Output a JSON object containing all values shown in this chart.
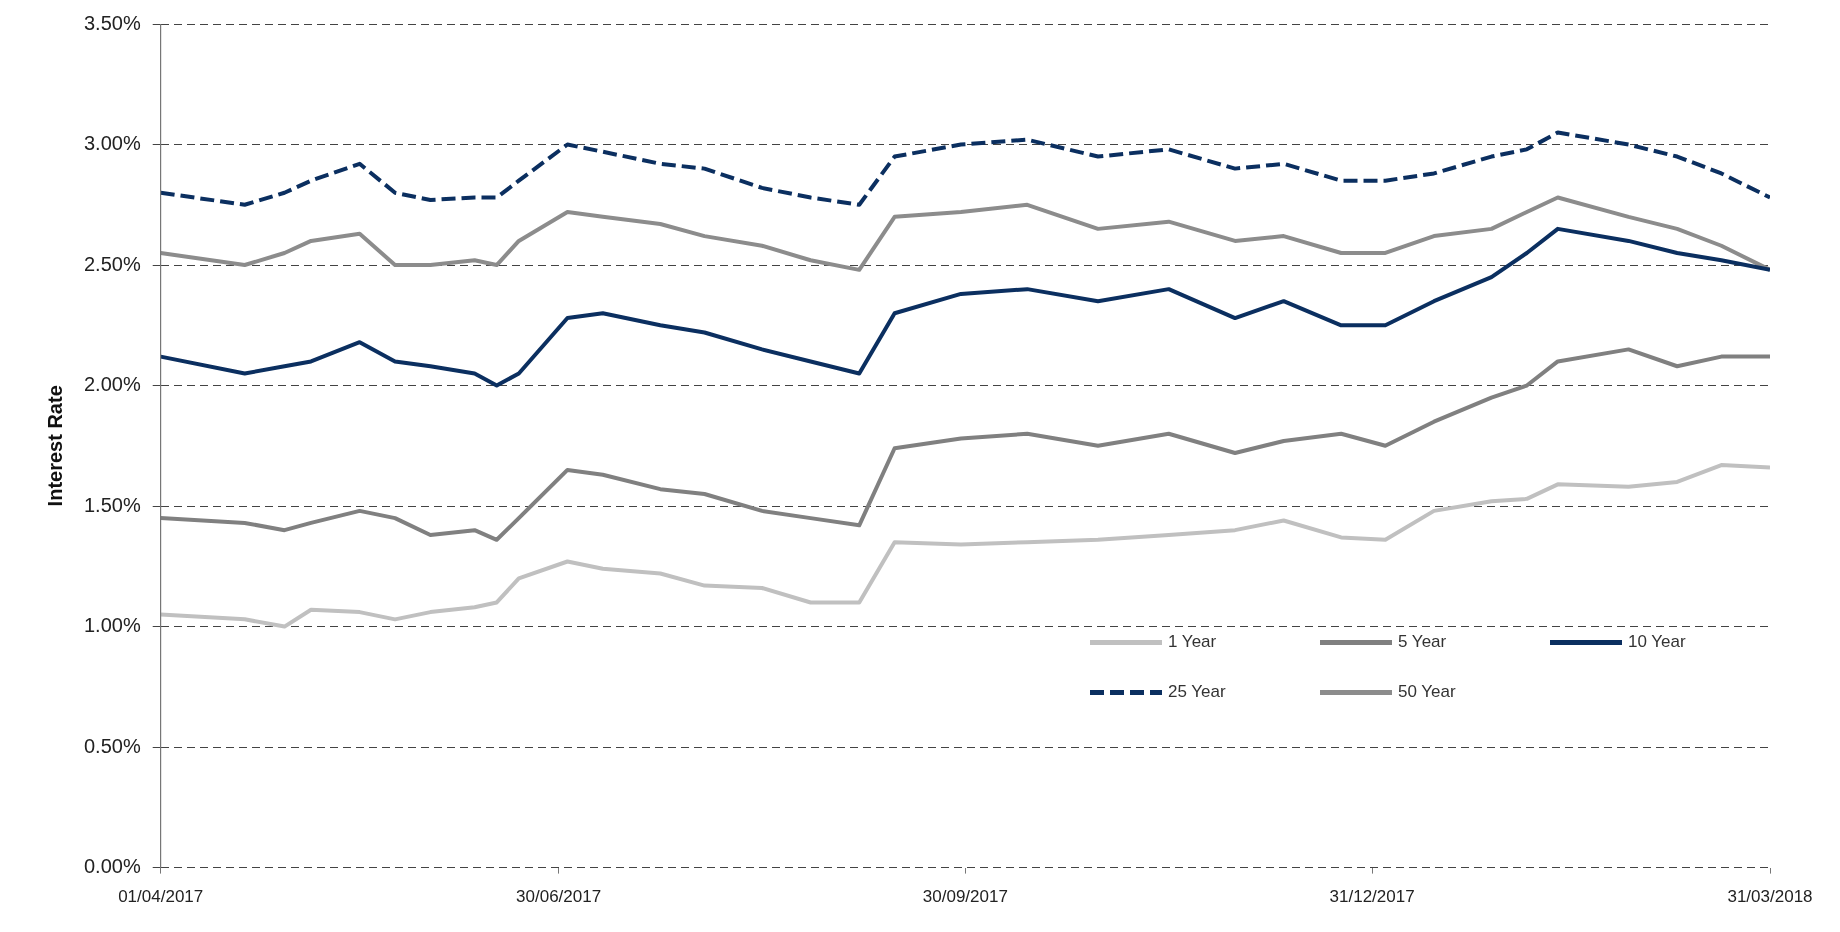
{
  "chart_data": {
    "type": "line",
    "ylabel": "Interest Rate",
    "x": [
      "2017-04-01",
      "2017-04-20",
      "2017-04-29",
      "2017-05-05",
      "2017-05-16",
      "2017-05-24",
      "2017-06-01",
      "2017-06-11",
      "2017-06-16",
      "2017-06-21",
      "2017-07-02",
      "2017-07-10",
      "2017-07-23",
      "2017-08-02",
      "2017-08-15",
      "2017-08-26",
      "2017-09-06",
      "2017-09-14",
      "2017-09-29",
      "2017-10-14",
      "2017-10-30",
      "2017-11-15",
      "2017-11-30",
      "2017-12-11",
      "2017-12-24",
      "2018-01-03",
      "2018-01-14",
      "2018-01-27",
      "2018-02-04",
      "2018-02-11",
      "2018-02-27",
      "2018-03-10",
      "2018-03-20",
      "2018-03-31"
    ],
    "series": [
      {
        "name": "1 Year",
        "color": "#c0c0c0",
        "line_style": "solid",
        "values": [
          1.05,
          1.03,
          1.0,
          1.07,
          1.06,
          1.03,
          1.06,
          1.08,
          1.1,
          1.2,
          1.27,
          1.24,
          1.22,
          1.17,
          1.16,
          1.1,
          1.1,
          1.35,
          1.34,
          1.35,
          1.36,
          1.38,
          1.4,
          1.44,
          1.37,
          1.36,
          1.48,
          1.52,
          1.53,
          1.59,
          1.58,
          1.6,
          1.67,
          1.66
        ]
      },
      {
        "name": "5 Year",
        "color": "#808080",
        "line_style": "solid",
        "values": [
          1.45,
          1.43,
          1.4,
          1.43,
          1.48,
          1.45,
          1.38,
          1.4,
          1.36,
          1.45,
          1.65,
          1.63,
          1.57,
          1.55,
          1.48,
          1.45,
          1.42,
          1.74,
          1.78,
          1.8,
          1.75,
          1.8,
          1.72,
          1.77,
          1.8,
          1.75,
          1.85,
          1.95,
          2.0,
          2.1,
          2.15,
          2.08,
          2.12,
          2.12
        ]
      },
      {
        "name": "10 Year",
        "color": "#0b2f60",
        "line_style": "solid",
        "values": [
          2.12,
          2.05,
          2.08,
          2.1,
          2.18,
          2.1,
          2.08,
          2.05,
          2.0,
          2.05,
          2.28,
          2.3,
          2.25,
          2.22,
          2.15,
          2.1,
          2.05,
          2.3,
          2.38,
          2.4,
          2.35,
          2.4,
          2.28,
          2.35,
          2.25,
          2.25,
          2.35,
          2.45,
          2.55,
          2.65,
          2.6,
          2.55,
          2.52,
          2.48
        ]
      },
      {
        "name": "25 Year",
        "color": "#0b2f60",
        "line_style": "dashed",
        "values": [
          2.8,
          2.75,
          2.8,
          2.85,
          2.92,
          2.8,
          2.77,
          2.78,
          2.78,
          2.85,
          3.0,
          2.97,
          2.92,
          2.9,
          2.82,
          2.78,
          2.75,
          2.95,
          3.0,
          3.02,
          2.95,
          2.98,
          2.9,
          2.92,
          2.85,
          2.85,
          2.88,
          2.95,
          2.98,
          3.05,
          3.0,
          2.95,
          2.88,
          2.78
        ]
      },
      {
        "name": "50 Year",
        "color": "#8c8c8c",
        "line_style": "solid",
        "values": [
          2.55,
          2.5,
          2.55,
          2.6,
          2.63,
          2.5,
          2.5,
          2.52,
          2.5,
          2.6,
          2.72,
          2.7,
          2.67,
          2.62,
          2.58,
          2.52,
          2.48,
          2.7,
          2.72,
          2.75,
          2.65,
          2.68,
          2.6,
          2.62,
          2.55,
          2.55,
          2.62,
          2.65,
          2.72,
          2.78,
          2.7,
          2.65,
          2.58,
          2.48
        ]
      }
    ],
    "xlim": [
      "2017-04-01",
      "2018-03-31"
    ],
    "xticks": [
      {
        "value": "2017-04-01",
        "label": "01/04/2017"
      },
      {
        "value": "2017-06-30",
        "label": "30/06/2017"
      },
      {
        "value": "2017-09-30",
        "label": "30/09/2017"
      },
      {
        "value": "2017-12-31",
        "label": "31/12/2017"
      },
      {
        "value": "2018-03-31",
        "label": "31/03/2018"
      }
    ],
    "ylim": [
      0,
      3.5
    ],
    "yticks": [
      {
        "value": 0,
        "label": "0.00%"
      },
      {
        "value": 0.5,
        "label": "0.50%"
      },
      {
        "value": 1,
        "label": "1.00%"
      },
      {
        "value": 1.5,
        "label": "1.50%"
      },
      {
        "value": 2,
        "label": "2.00%"
      },
      {
        "value": 2.5,
        "label": "2.50%"
      },
      {
        "value": 3,
        "label": "3.00%"
      },
      {
        "value": 3.5,
        "label": "3.50%"
      }
    ],
    "grid": "y",
    "legend": "bottom right"
  }
}
